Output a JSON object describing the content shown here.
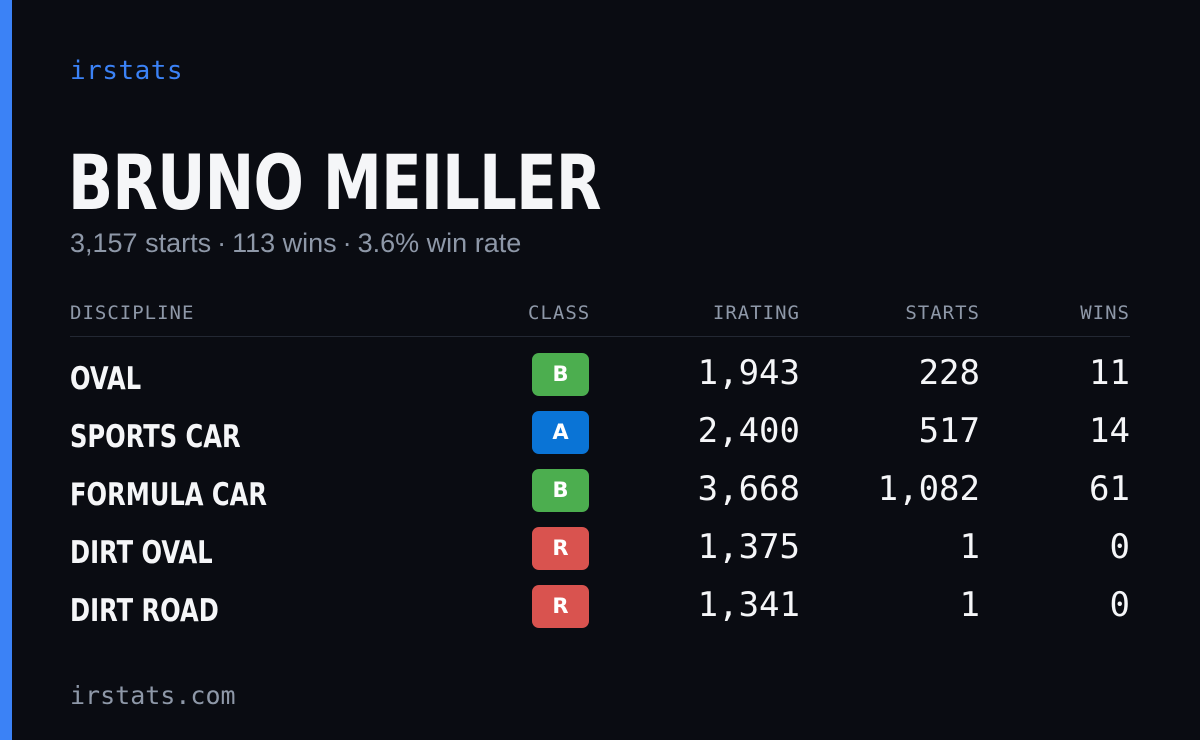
{
  "brand": "irstats",
  "profile": {
    "name": "BRUNO MEILLER",
    "starts_text": "3,157 starts",
    "wins_text": "113 wins",
    "win_rate_text": "3.6% win rate",
    "separator": "·"
  },
  "table": {
    "headers": {
      "discipline": "DISCIPLINE",
      "class": "CLASS",
      "irating": "IRATING",
      "starts": "STARTS",
      "wins": "WINS"
    },
    "rows": [
      {
        "discipline": "OVAL",
        "class": "B",
        "irating": "1,943",
        "starts": "228",
        "wins": "11"
      },
      {
        "discipline": "SPORTS CAR",
        "class": "A",
        "irating": "2,400",
        "starts": "517",
        "wins": "14"
      },
      {
        "discipline": "FORMULA CAR",
        "class": "B",
        "irating": "3,668",
        "starts": "1,082",
        "wins": "61"
      },
      {
        "discipline": "DIRT OVAL",
        "class": "R",
        "irating": "1,375",
        "starts": "1",
        "wins": "0"
      },
      {
        "discipline": "DIRT ROAD",
        "class": "R",
        "irating": "1,341",
        "starts": "1",
        "wins": "0"
      }
    ]
  },
  "class_colors": {
    "A": "#0a74d6",
    "B": "#4cae4f",
    "R": "#d9534f"
  },
  "colors": {
    "accent": "#3b82f6",
    "background": "#0a0c12"
  },
  "footer": "irstats.com"
}
